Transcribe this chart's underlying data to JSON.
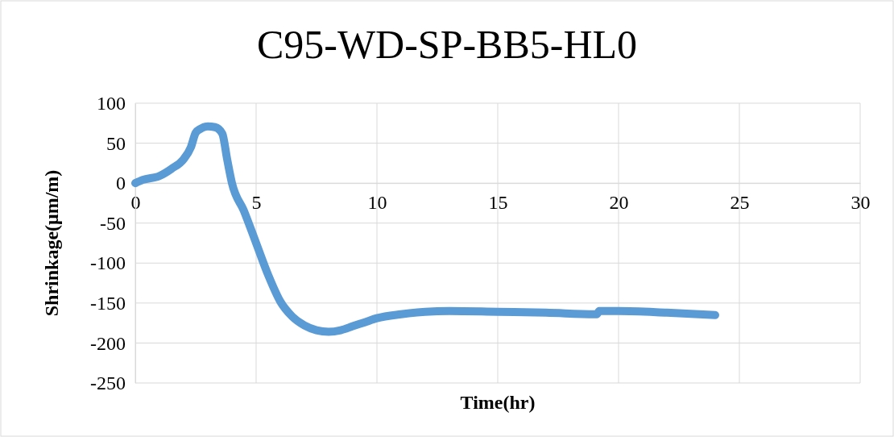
{
  "chart_data": {
    "type": "line",
    "title": "C95-WD-SP-BB5-HL0",
    "xlabel": "Time(hr)",
    "ylabel": "Shrinkage(μm/m)",
    "xlim": [
      0,
      30
    ],
    "xticks": [
      0,
      5,
      10,
      15,
      20,
      25,
      30
    ],
    "ylim": [
      -250,
      100
    ],
    "yticks": [
      -250,
      -200,
      -150,
      -100,
      -50,
      0,
      50,
      100
    ],
    "grid": true,
    "marker": "none",
    "line_style": "solid",
    "series": [
      {
        "color": "#5b9bd5",
        "x": [
          0,
          0.3,
          1,
          1.5,
          2,
          2.3,
          2.5,
          2.7,
          3,
          3.3,
          3.6,
          3.8,
          4,
          4.5,
          5,
          5.5,
          6,
          6.5,
          7,
          7.5,
          8,
          8.5,
          9,
          9.5,
          10,
          11,
          12,
          13,
          15,
          17,
          19,
          19.1,
          19.2,
          20,
          22,
          24
        ],
        "values": [
          0,
          4,
          9,
          18,
          30,
          45,
          63,
          68,
          71,
          70,
          62,
          30,
          0,
          -35,
          -75,
          -115,
          -148,
          -167,
          -178,
          -184,
          -186,
          -184,
          -179,
          -174,
          -169,
          -164,
          -161,
          -160,
          -161,
          -162,
          -164,
          -164,
          -160,
          -160,
          -162,
          -165
        ]
      }
    ]
  }
}
